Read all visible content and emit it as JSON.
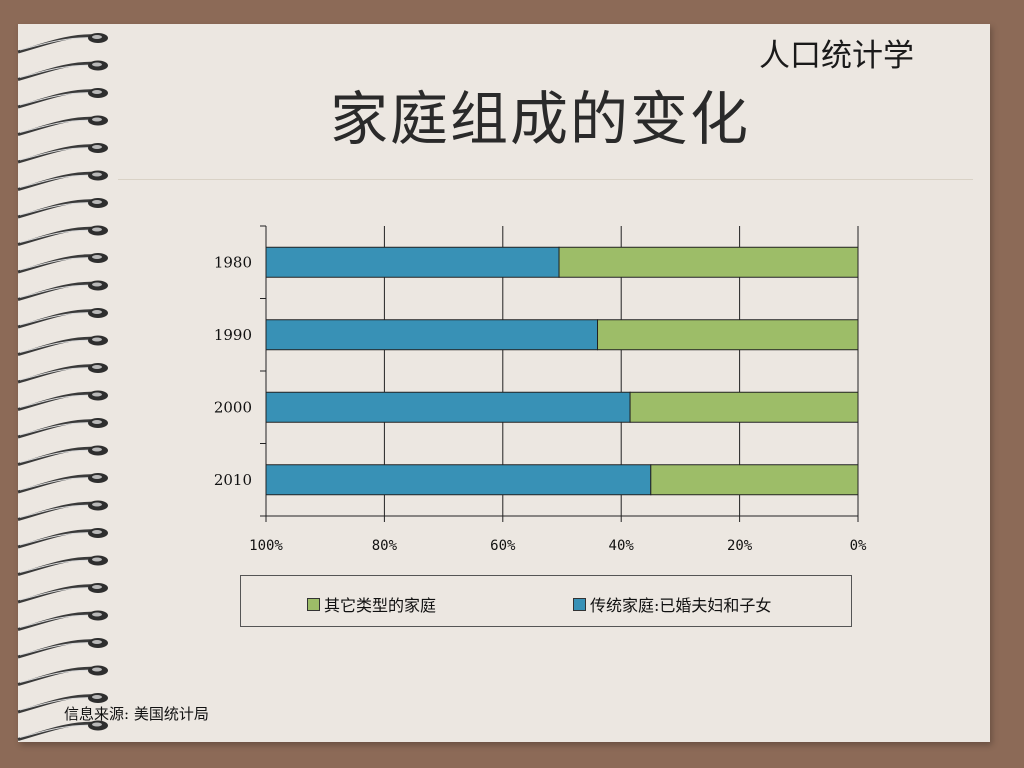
{
  "header": {
    "subtitle": "人口统计学",
    "title": "家庭组成的变化"
  },
  "source_note": "信息来源: 美国统计局",
  "colors": {
    "traditional": "#3891b6",
    "other": "#9dbd68"
  },
  "chart_data": {
    "type": "bar",
    "orientation": "horizontal",
    "stacked": "percent",
    "x_axis_reversed": true,
    "categories": [
      "1980",
      "1990",
      "2000",
      "2010"
    ],
    "xlim": [
      0,
      100
    ],
    "xticks": [
      "100%",
      "80%",
      "60%",
      "40%",
      "20%",
      "0%"
    ],
    "grid": true,
    "legend_position": "bottom",
    "series": [
      {
        "name": "传统家庭:已婚夫妇和子女",
        "color": "#3891b6",
        "values": [
          49.5,
          56,
          61.5,
          65
        ]
      },
      {
        "name": "其它类型的家庭",
        "color": "#9dbd68",
        "values": [
          50.5,
          44,
          38.5,
          35
        ]
      }
    ]
  }
}
